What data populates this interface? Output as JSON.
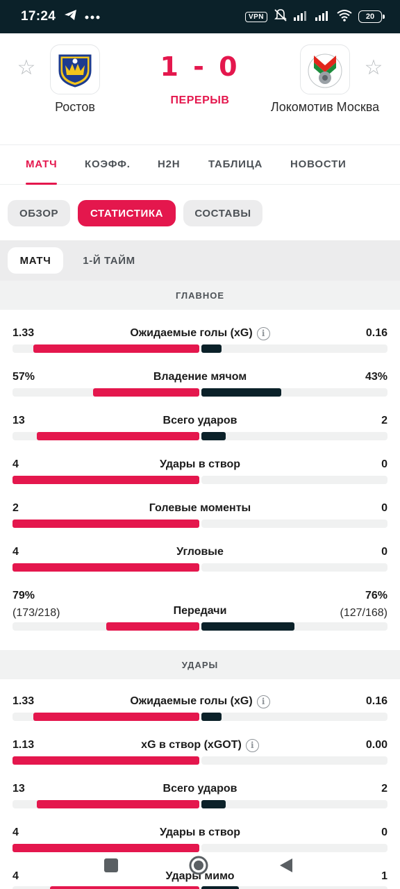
{
  "status_bar": {
    "time": "17:24",
    "vpn": "VPN",
    "battery": "20"
  },
  "match": {
    "home_team": "Ростов",
    "away_team": "Локомотив Москва",
    "score": "1 - 0",
    "status": "ПЕРЕРЫВ"
  },
  "tabs": [
    {
      "label": "МАТЧ",
      "active": true
    },
    {
      "label": "КОЭФФ.",
      "active": false
    },
    {
      "label": "H2H",
      "active": false
    },
    {
      "label": "ТАБЛИЦА",
      "active": false
    },
    {
      "label": "НОВОСТИ",
      "active": false
    }
  ],
  "subtabs": [
    {
      "label": "ОБЗОР",
      "active": false
    },
    {
      "label": "СТАТИСТИКА",
      "active": true
    },
    {
      "label": "СОСТАВЫ",
      "active": false
    }
  ],
  "periods": [
    {
      "label": "МАТЧ",
      "active": true
    },
    {
      "label": "1-Й ТАЙМ",
      "active": false
    }
  ],
  "sections": [
    {
      "title": "ГЛАВНОЕ",
      "stats": [
        {
          "label": "Ожидаемые голы (xG)",
          "info": true,
          "home": "1.33",
          "away": "0.16",
          "home_share": 0.89,
          "away_share": 0.11
        },
        {
          "label": "Владение мячом",
          "info": false,
          "home": "57%",
          "away": "43%",
          "home_share": 0.57,
          "away_share": 0.43
        },
        {
          "label": "Всего ударов",
          "info": false,
          "home": "13",
          "away": "2",
          "home_share": 0.87,
          "away_share": 0.13
        },
        {
          "label": "Удары в створ",
          "info": false,
          "home": "4",
          "away": "0",
          "home_share": 1.0,
          "away_share": 0.0
        },
        {
          "label": "Голевые моменты",
          "info": false,
          "home": "2",
          "away": "0",
          "home_share": 1.0,
          "away_share": 0.0
        },
        {
          "label": "Угловые",
          "info": false,
          "home": "4",
          "away": "0",
          "home_share": 1.0,
          "away_share": 0.0
        },
        {
          "label": "Передачи",
          "info": false,
          "home": "79%",
          "away": "76%",
          "home_sub": "(173/218)",
          "away_sub": "(127/168)",
          "home_share": 0.5,
          "away_share": 0.5
        }
      ]
    },
    {
      "title": "УДАРЫ",
      "stats": [
        {
          "label": "Ожидаемые голы (xG)",
          "info": true,
          "home": "1.33",
          "away": "0.16",
          "home_share": 0.89,
          "away_share": 0.11
        },
        {
          "label": "xG в створ (xGOT)",
          "info": true,
          "home": "1.13",
          "away": "0.00",
          "home_share": 1.0,
          "away_share": 0.0
        },
        {
          "label": "Всего ударов",
          "info": false,
          "home": "13",
          "away": "2",
          "home_share": 0.87,
          "away_share": 0.13
        },
        {
          "label": "Удары в створ",
          "info": false,
          "home": "4",
          "away": "0",
          "home_share": 1.0,
          "away_share": 0.0
        },
        {
          "label": "Удары мимо",
          "info": false,
          "home": "4",
          "away": "1",
          "home_share": 0.8,
          "away_share": 0.2
        }
      ]
    }
  ],
  "colors": {
    "accent": "#e4174d",
    "away_bar": "#0b2129",
    "status_bar": "#0b2129"
  },
  "icons": [
    "telegram-icon",
    "more-icon",
    "mute-icon",
    "signal-icon",
    "wifi-icon",
    "star-icon",
    "info-icon",
    "recents-icon",
    "home-icon",
    "back-icon"
  ]
}
